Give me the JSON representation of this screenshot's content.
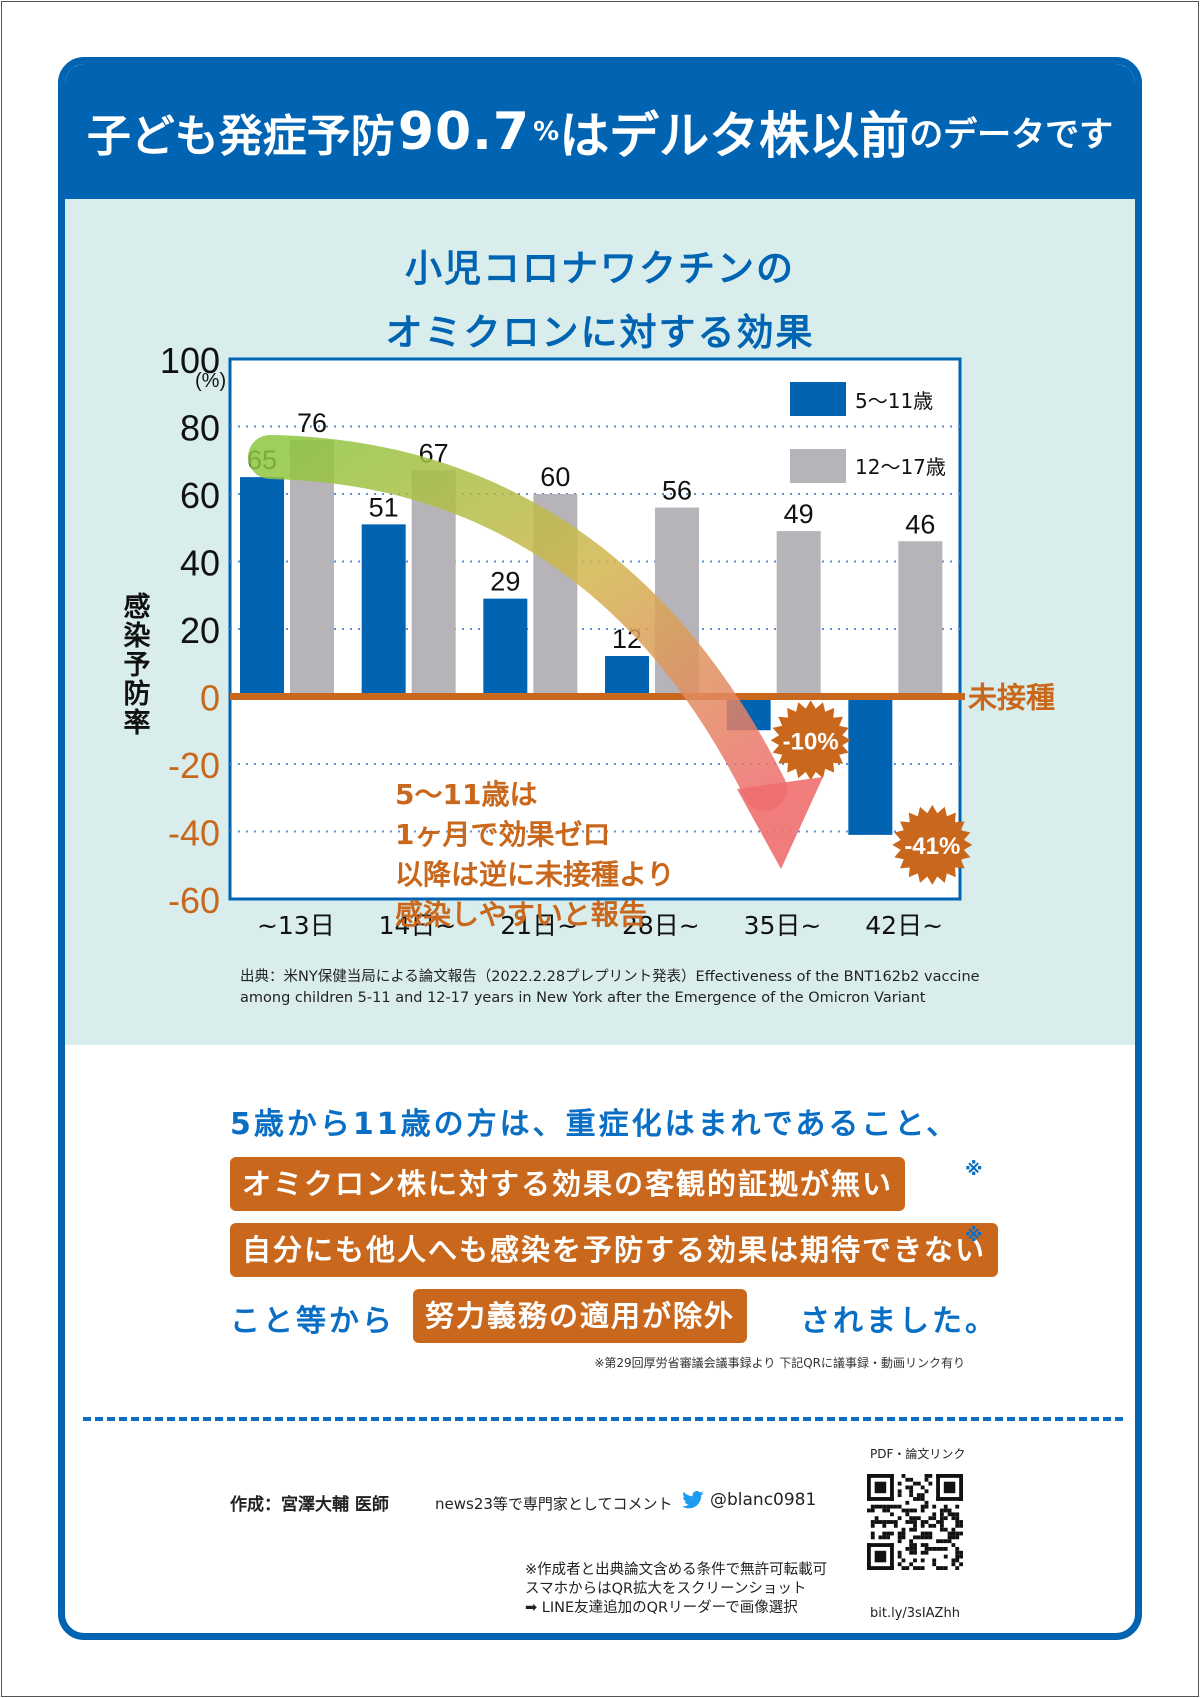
{
  "header": {
    "part1": "子ども発症予防",
    "figure": "90.7",
    "percent_sign": "%",
    "part2": "はデルタ株以前",
    "part3": "のデータです"
  },
  "chart_title": {
    "line1": "小児コロナワクチンの",
    "line2": "オミクロンに対する効果"
  },
  "chart_data": {
    "type": "bar",
    "title": "小児コロナワクチンのオミクロンに対する効果",
    "unit_label": "(%)",
    "ylabel": "感染予防率",
    "xlabel": "",
    "ylim": [
      -60,
      100
    ],
    "y_ticks": [
      100,
      80,
      60,
      40,
      20,
      0,
      -20,
      -40,
      -60
    ],
    "grid": "horizontal dotted",
    "legend_position": "top-right",
    "categories": [
      "~13日",
      "14日~",
      "21日~",
      "28日~",
      "35日~",
      "42日~"
    ],
    "series": [
      {
        "name": "5〜11歳",
        "color": "#0064b3",
        "values": [
          65,
          51,
          29,
          12,
          -10,
          -41
        ]
      },
      {
        "name": "12〜17歳",
        "color": "#b6b4b8",
        "values": [
          76,
          67,
          60,
          56,
          49,
          46
        ]
      }
    ],
    "data_labels": {
      "5〜11歳": [
        "65",
        "51",
        "29",
        "12",
        "-10%",
        "-41%"
      ],
      "12〜17歳": [
        "76",
        "67",
        "60",
        "56",
        "49",
        "46"
      ]
    },
    "zero_line_label": "未接種",
    "annotation_lines": [
      "5〜11歳は",
      "1ヶ月で効果ゼロ",
      "以降は逆に未接種より",
      "感染しやすいと報告"
    ]
  },
  "colors": {
    "blue": "#0064b3",
    "gray": "#b6b4b8",
    "orange": "#c9681c",
    "panel_bg": "#d9eeec"
  },
  "source": {
    "line1": "出典：米NY保健当局による論文報告（2022.2.28プレプリント発表）Effectiveness of the BNT162b2 vaccine",
    "line2": "among children 5-11 and 12-17 years in New York after the Emergence of the Omicron Variant"
  },
  "summary": {
    "line1": "5歳から11歳の方は、重症化はまれであること、",
    "box1": "オミクロン株に対する効果の客観的証拠が無い",
    "box2": "自分にも他人へも感染を予防する効果は期待できない",
    "mark": "※",
    "line4_prefix": "こと等から",
    "box3": "努力義務の適用が除外",
    "line4_suffix": "されました。",
    "footnote": "※第29回厚労省審議会議事録より 下記QRに議事録・動画リンク有り"
  },
  "footer": {
    "author": "作成：宮澤大輔 医師",
    "comment": "news23等で専門家としてコメント",
    "twitter_icon": "twitter-bird-icon",
    "twitter_handle": "@blanc0981",
    "notes": [
      "※作成者と出典論文含める条件で無許可転載可",
      "スマホからはQR拡大をスクリーンショット",
      "➡ LINE友達追加のQRリーダーで画像選択"
    ],
    "pdf_label": "PDF・論文リンク",
    "bitly": "bit.ly/3sIAZhh"
  }
}
